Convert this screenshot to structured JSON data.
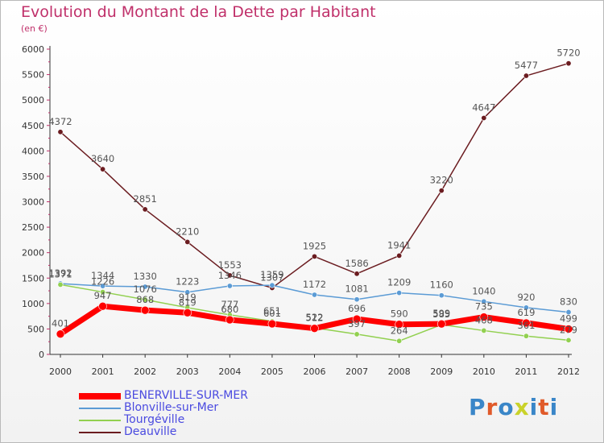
{
  "title": "Evolution du Montant de la Dette par Habitant",
  "subtitle": "(en €)",
  "logo": {
    "letters": [
      "P",
      "r",
      "o",
      "x",
      "i",
      "t",
      "i"
    ],
    "colors": [
      "#3a86c8",
      "#e05a2a",
      "#3a86c8",
      "#c9d22a",
      "#3a86c8",
      "#e05a2a",
      "#3a86c8"
    ]
  },
  "chart_data": {
    "type": "line",
    "x": [
      "2000",
      "2001",
      "2002",
      "2003",
      "2004",
      "2005",
      "2006",
      "2007",
      "2008",
      "2009",
      "2010",
      "2011",
      "2012"
    ],
    "y_ticks": [
      "0",
      "500",
      "1000",
      "1500",
      "2000",
      "2500",
      "3000",
      "3500",
      "4000",
      "4500",
      "5000",
      "5500",
      "6000"
    ],
    "ylim": [
      0,
      6000
    ],
    "grid": false,
    "legend_position": "bottom-left",
    "series": [
      {
        "name": "BENERVILLE-SUR-MER",
        "color": "#ff0000",
        "width": 7,
        "values": [
          401,
          947,
          868,
          819,
          680,
          601,
          512,
          696,
          590,
          599,
          735,
          619,
          499
        ]
      },
      {
        "name": "Blonville-sur-Mer",
        "color": "#5b9bd5",
        "width": 1.5,
        "values": [
          1392,
          1344,
          1330,
          1223,
          1346,
          1359,
          1172,
          1081,
          1209,
          1160,
          1040,
          920,
          830
        ]
      },
      {
        "name": "Tourgéville",
        "color": "#92d050",
        "width": 1.5,
        "values": [
          1371,
          1226,
          1076,
          919,
          777,
          651,
          522,
          397,
          264,
          585,
          468,
          361,
          279
        ]
      },
      {
        "name": "Deauville",
        "color": "#6b1c20",
        "width": 1.5,
        "values": [
          4372,
          3640,
          2851,
          2210,
          1553,
          1307,
          1925,
          1586,
          1941,
          3220,
          4647,
          5477,
          5720
        ]
      }
    ]
  }
}
